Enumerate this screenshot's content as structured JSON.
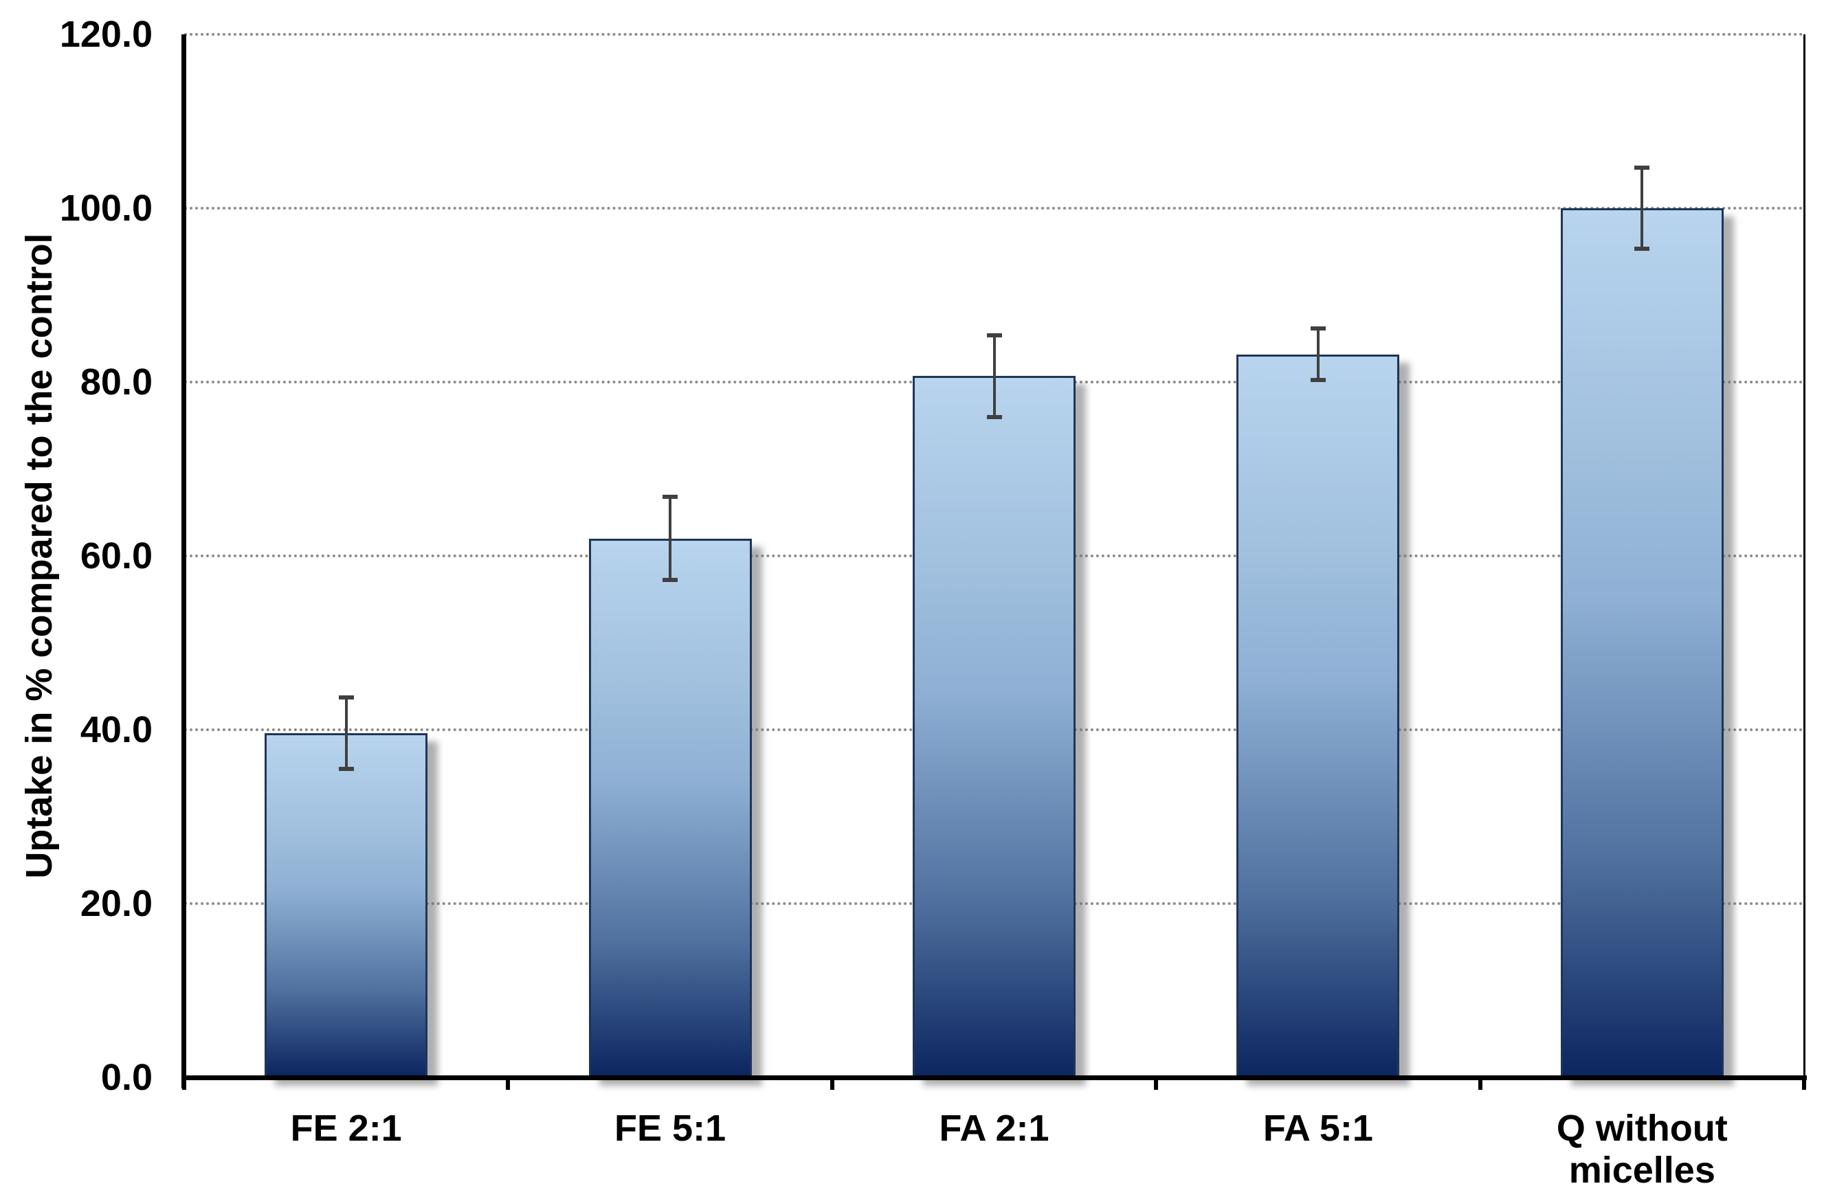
{
  "chart_data": {
    "type": "bar",
    "categories": [
      "FE 2:1",
      "FE 5:1",
      "FA 2:1",
      "FA 5:1",
      "Q without\nmicelles"
    ],
    "values": [
      39.6,
      62.0,
      80.7,
      83.2,
      100.0
    ],
    "error_bars": [
      4.1,
      4.8,
      4.7,
      3.0,
      4.7
    ],
    "ylabel": "Uptake in % compared to the control",
    "xlabel": "",
    "ylim": [
      0,
      120
    ],
    "yticks": [
      "0.0",
      "20.0",
      "40.0",
      "60.0",
      "80.0",
      "100.0",
      "120.0"
    ],
    "ytick_values": [
      0,
      20,
      40,
      60,
      80,
      100,
      120
    ],
    "grid": "horizontal-dotted",
    "legend_position": "none",
    "colors": {
      "bar_gradient_top": "#b8d4ee",
      "bar_gradient_bottom": "#0c2660",
      "bar_border": "#1f3557",
      "bar_shadow": "#6e6e6e",
      "error_bar": "#404040",
      "gridline": "#8c8c8c",
      "axis": "#000000",
      "text": "#000000",
      "background": "#ffffff"
    }
  }
}
